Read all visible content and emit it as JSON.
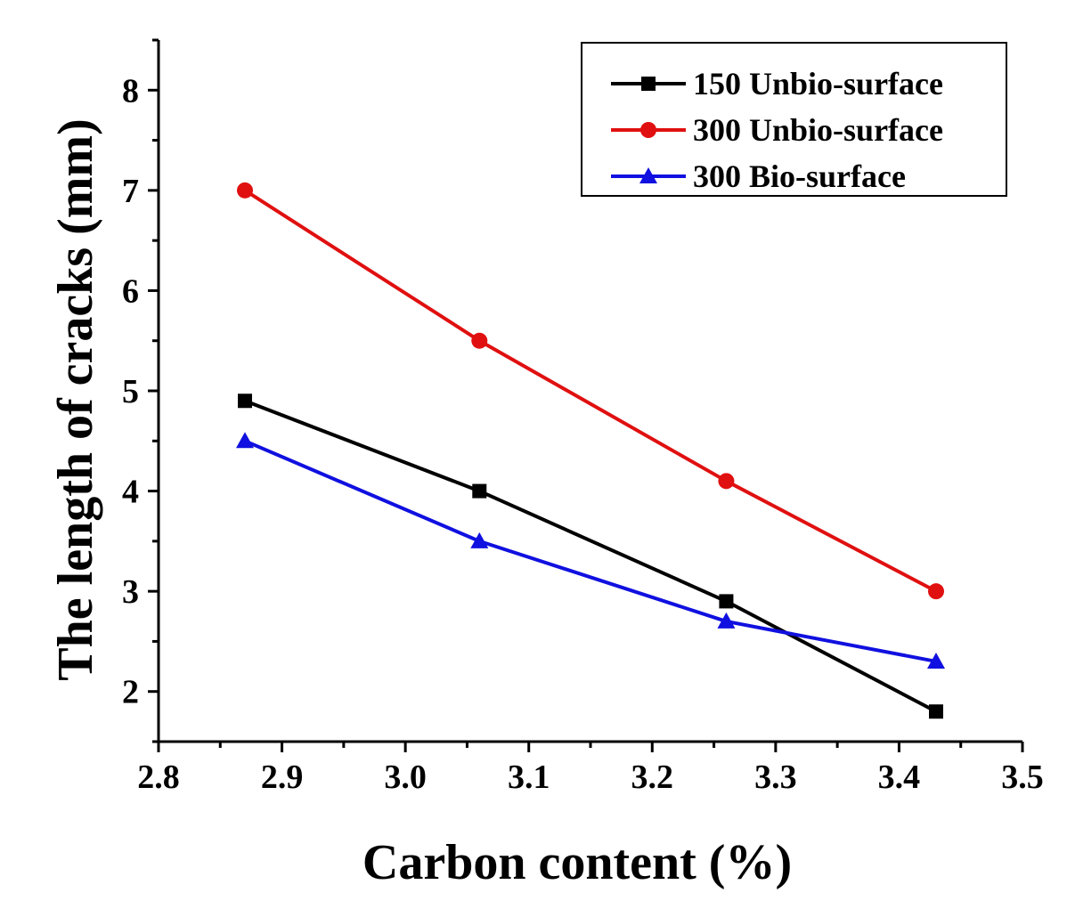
{
  "chart_data": {
    "type": "line",
    "xlabel": "Carbon content (%)",
    "ylabel": "The length of cracks (mm)",
    "xlim": [
      2.8,
      3.5
    ],
    "ylim": [
      1.5,
      8.5
    ],
    "x_ticks": [
      "2.8",
      "2.9",
      "3.0",
      "3.1",
      "3.2",
      "3.3",
      "3.4",
      "3.5"
    ],
    "x_tick_values": [
      2.8,
      2.9,
      3.0,
      3.1,
      3.2,
      3.3,
      3.4,
      3.5
    ],
    "y_ticks": [
      "2",
      "3",
      "4",
      "5",
      "6",
      "7",
      "8"
    ],
    "y_tick_values": [
      2,
      3,
      4,
      5,
      6,
      7,
      8
    ],
    "x": [
      2.87,
      3.06,
      3.26,
      3.43
    ],
    "grid": false,
    "legend_position": "top-right",
    "series": [
      {
        "name": "150 Unbio-surface",
        "values": [
          4.9,
          4.0,
          2.9,
          1.8
        ],
        "color": "#000000",
        "marker": "square"
      },
      {
        "name": "300 Unbio-surface",
        "values": [
          7.0,
          5.5,
          4.1,
          3.0
        ],
        "color": "#e01010",
        "marker": "circle"
      },
      {
        "name": "300 Bio-surface",
        "values": [
          4.5,
          3.5,
          2.7,
          2.3
        ],
        "color": "#1010e0",
        "marker": "triangle"
      }
    ]
  }
}
